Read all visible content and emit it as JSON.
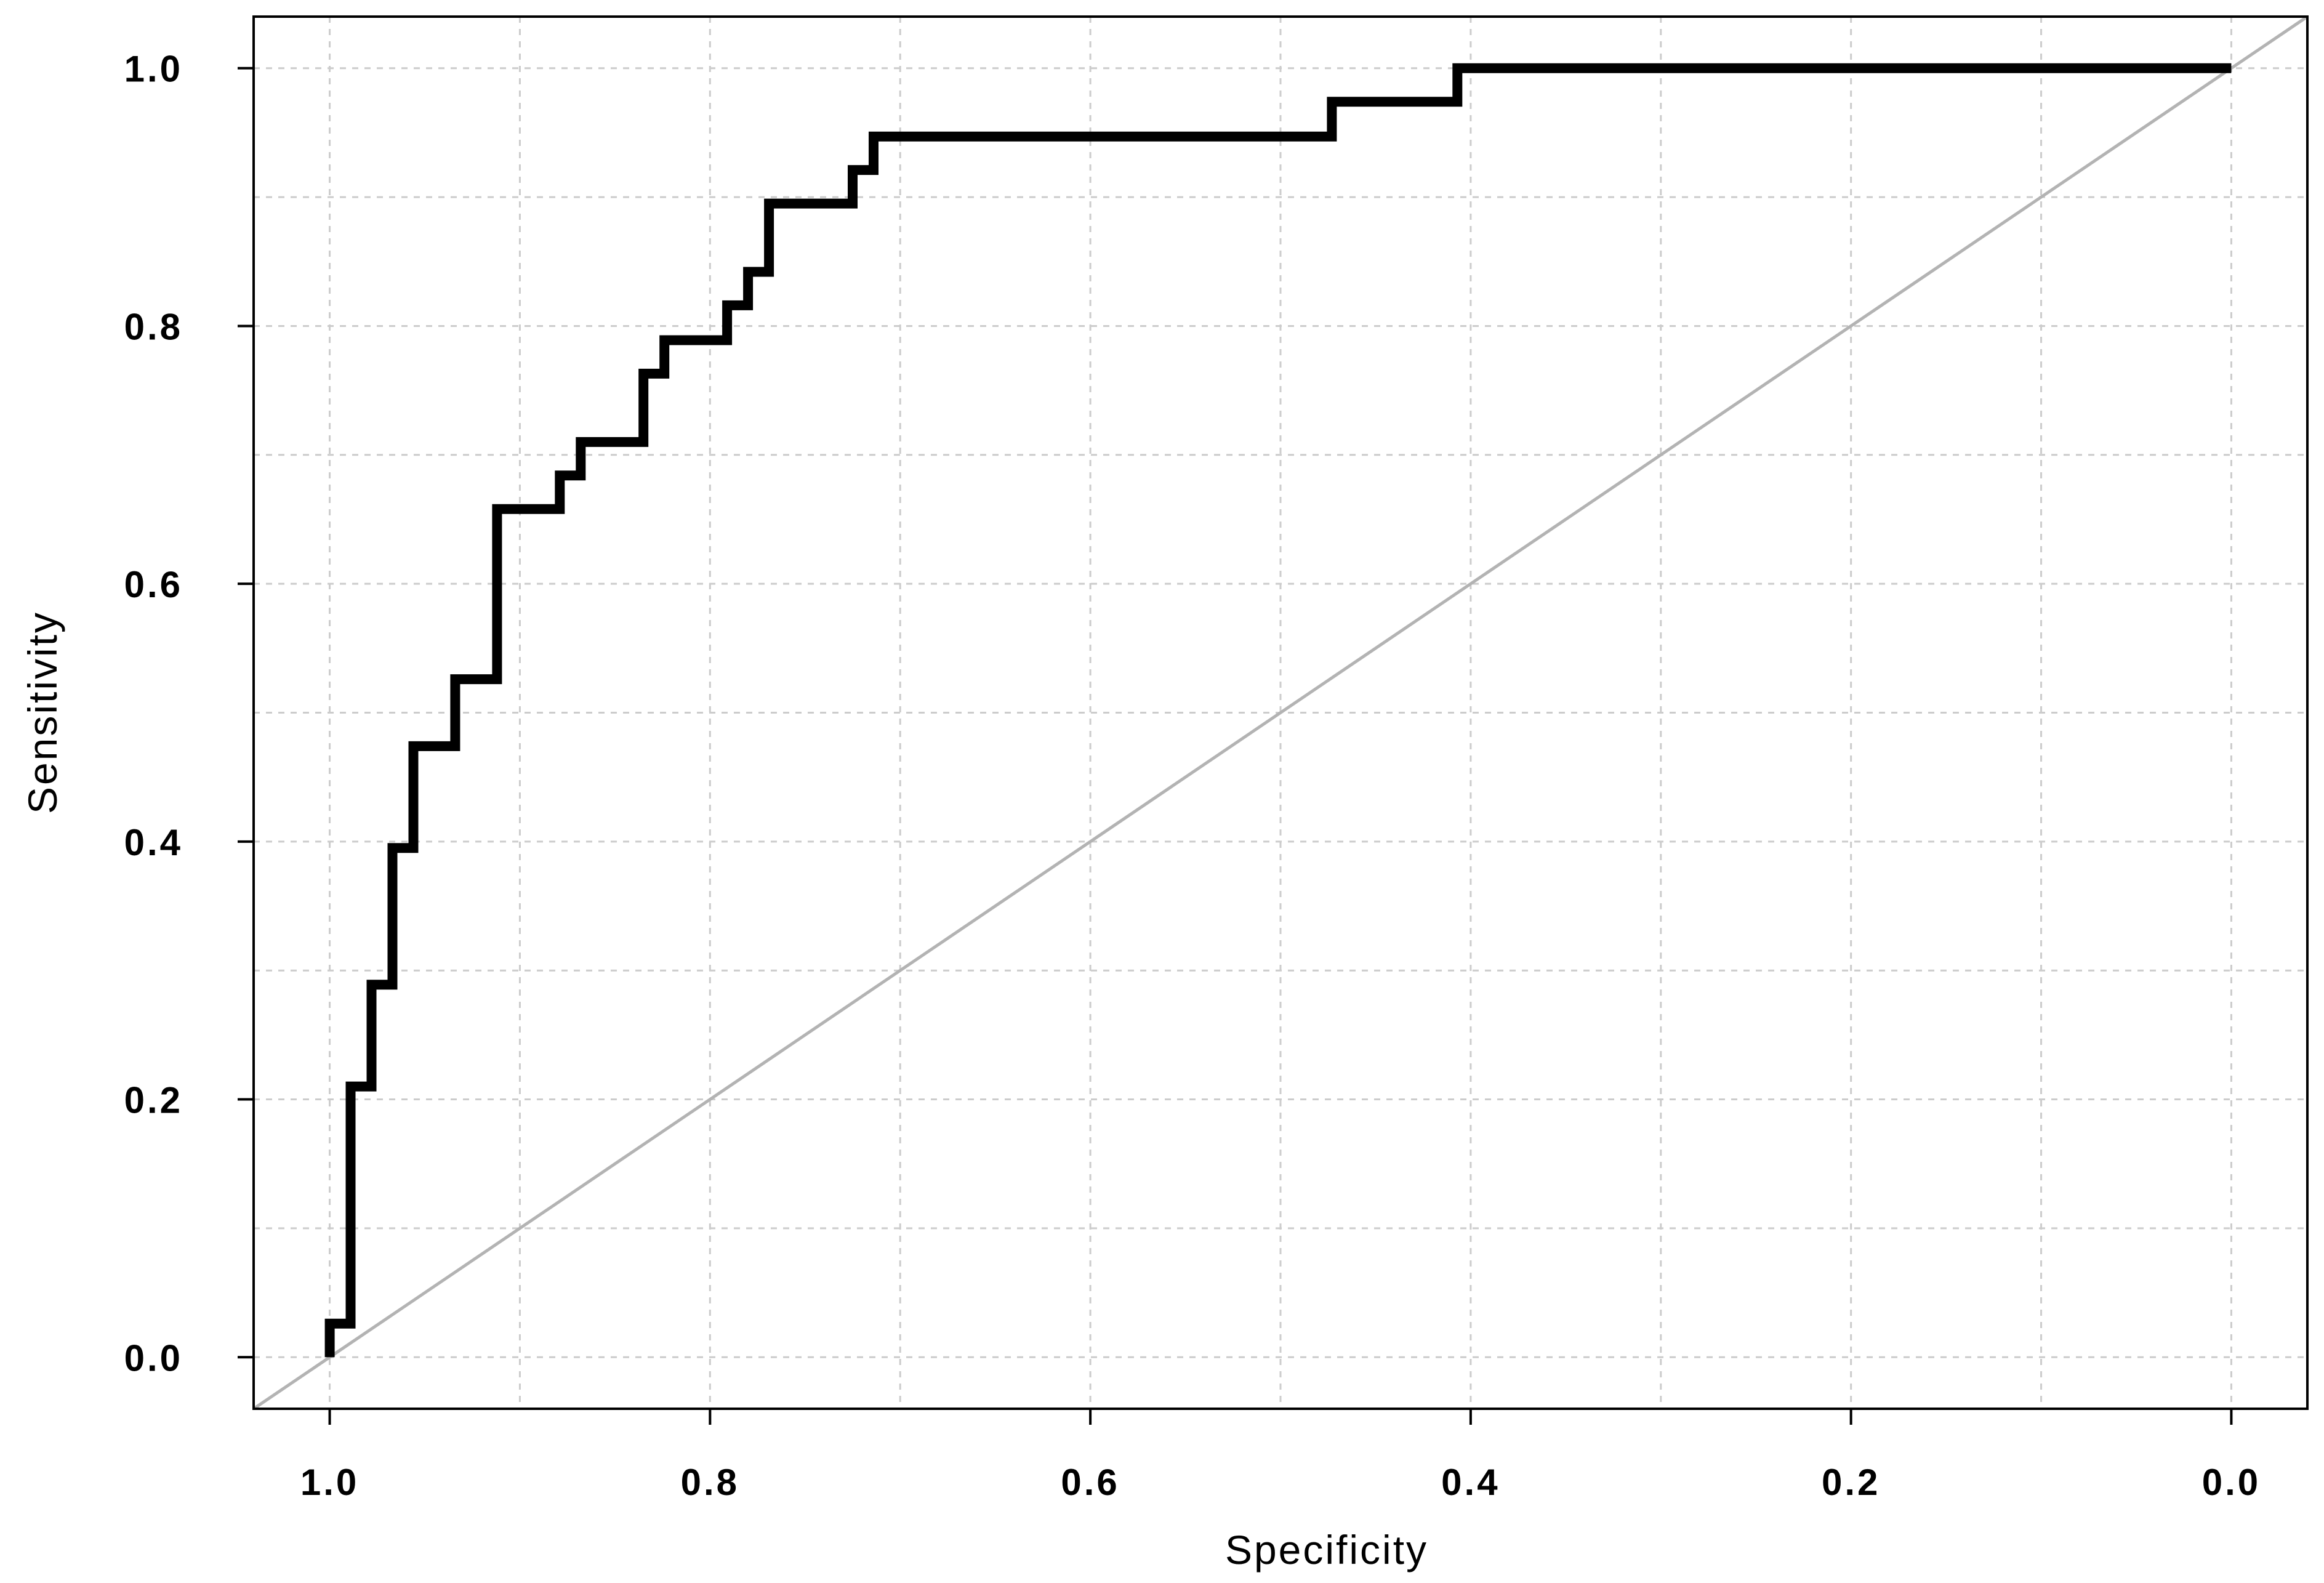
{
  "chart_data": {
    "type": "line",
    "title": "",
    "xlabel": "Specificity",
    "ylabel": "Sensitivity",
    "x_reversed": true,
    "xlim": [
      1.04,
      -0.04
    ],
    "ylim": [
      -0.04,
      1.04
    ],
    "grid": true,
    "legend": "none",
    "x_ticks": [
      "1.0",
      "0.8",
      "0.6",
      "0.4",
      "0.2",
      "0.0"
    ],
    "x_tick_values": [
      1.0,
      0.8,
      0.6,
      0.4,
      0.2,
      0.0
    ],
    "y_ticks": [
      "0.0",
      "0.2",
      "0.4",
      "0.6",
      "0.8",
      "1.0"
    ],
    "y_tick_values": [
      0.0,
      0.2,
      0.4,
      0.6,
      0.8,
      1.0
    ],
    "grid_x_values": [
      1.0,
      0.9,
      0.8,
      0.7,
      0.6,
      0.5,
      0.4,
      0.3,
      0.2,
      0.1,
      0.0
    ],
    "grid_y_values": [
      0.0,
      0.1,
      0.2,
      0.3,
      0.4,
      0.5,
      0.6,
      0.7,
      0.8,
      0.9,
      1.0
    ],
    "series": [
      {
        "color": "#000000",
        "step": true,
        "x": [
          1.0,
          1.0,
          0.989,
          0.989,
          0.978,
          0.978,
          0.967,
          0.967,
          0.956,
          0.956,
          0.934,
          0.934,
          0.912,
          0.912,
          0.879,
          0.879,
          0.868,
          0.868,
          0.835,
          0.835,
          0.824,
          0.824,
          0.791,
          0.791,
          0.78,
          0.78,
          0.769,
          0.769,
          0.725,
          0.725,
          0.714,
          0.714,
          0.473,
          0.473,
          0.407,
          0.407,
          0.0
        ],
        "y": [
          0.0,
          0.026,
          0.026,
          0.21,
          0.21,
          0.289,
          0.289,
          0.395,
          0.395,
          0.474,
          0.474,
          0.526,
          0.526,
          0.658,
          0.658,
          0.684,
          0.684,
          0.71,
          0.71,
          0.763,
          0.763,
          0.789,
          0.789,
          0.816,
          0.816,
          0.842,
          0.842,
          0.895,
          0.895,
          0.921,
          0.921,
          0.947,
          0.947,
          0.974,
          0.974,
          1.0,
          1.0
        ]
      }
    ],
    "reference_line": {
      "x": [
        1.04,
        -0.04
      ],
      "y": [
        -0.04,
        1.04
      ],
      "color": "#b3b3b3"
    },
    "colors": {
      "curve": "#000000",
      "reference": "#b3b3b3",
      "grid": "#cccccc",
      "frame": "#000000"
    }
  }
}
